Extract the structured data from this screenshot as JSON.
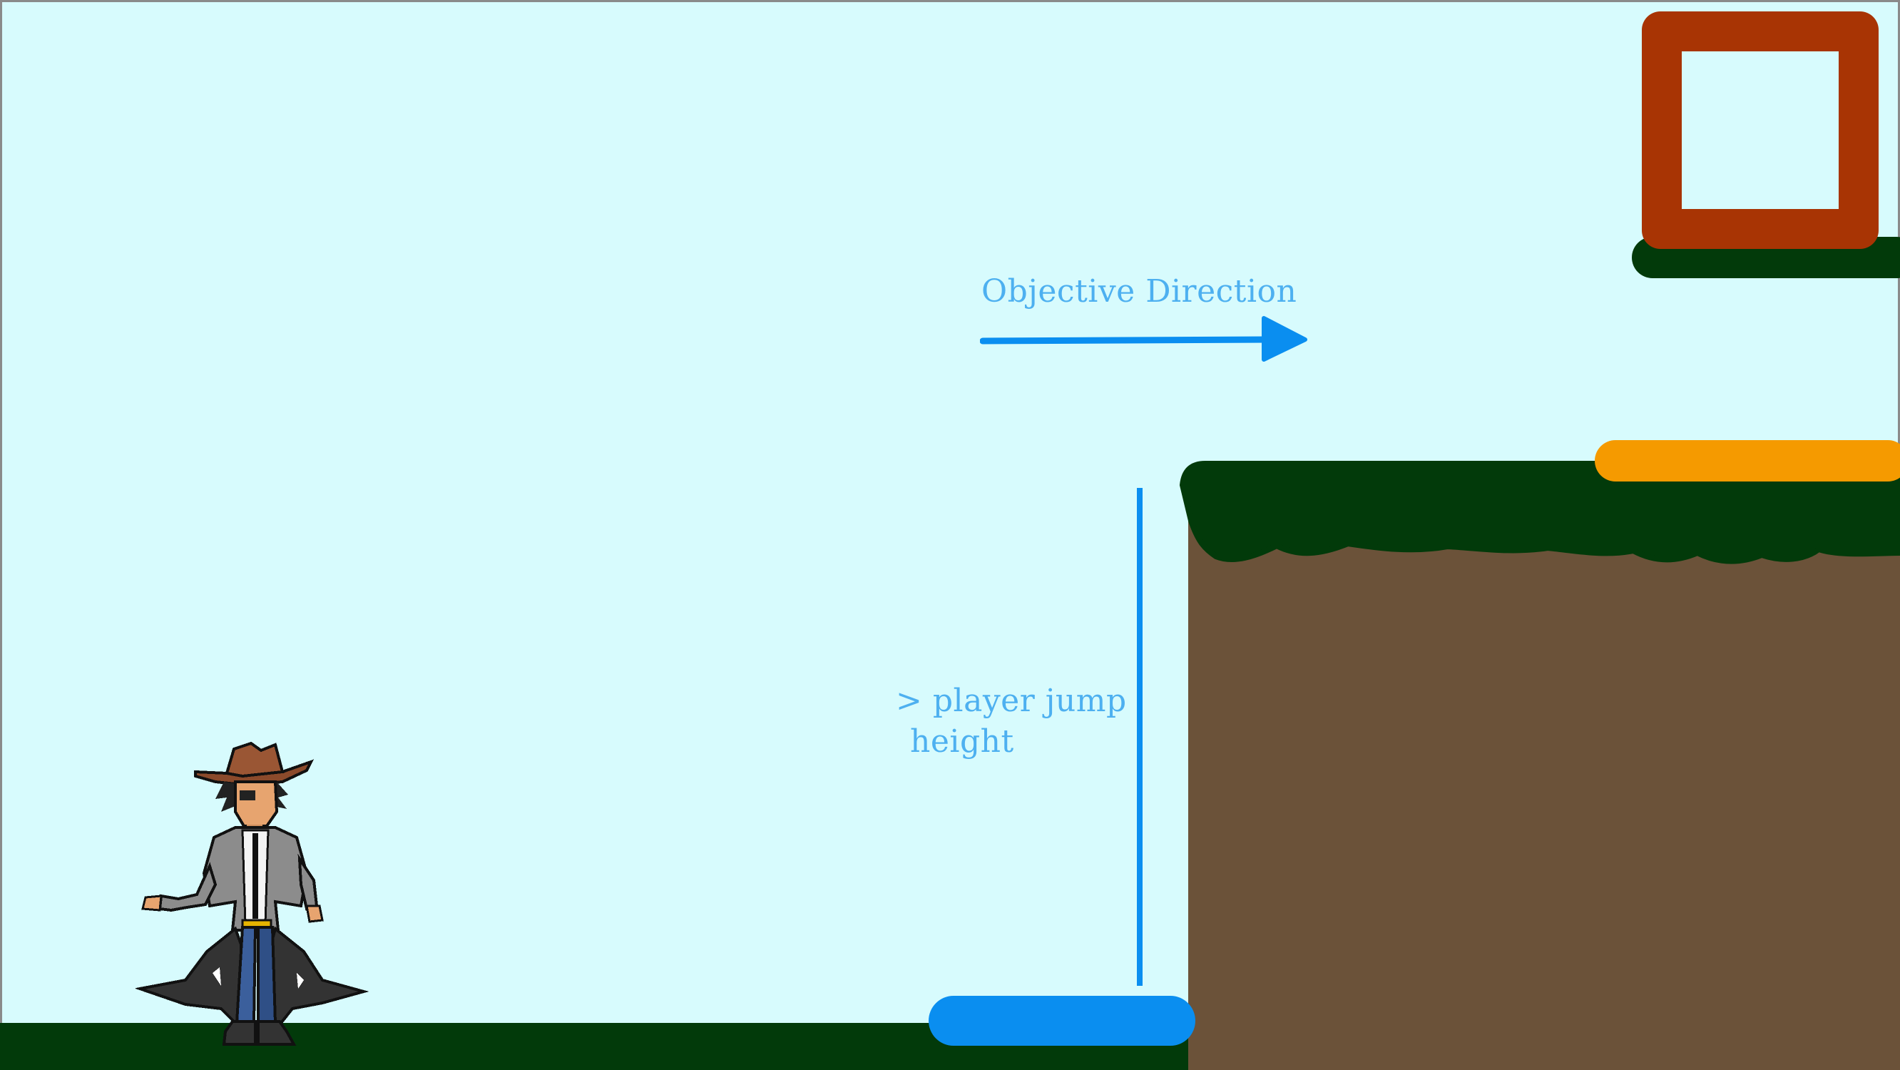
{
  "scene": {
    "objective_label": "Objective Direction",
    "jump_label_line1": "> player jump",
    "jump_label_line2": "height"
  },
  "colors": {
    "sky": "#d7fbfd",
    "ground_green": "#023a0a",
    "dirt": "#6b5239",
    "goal_frame": "#a83404",
    "annotation_blue": "#0a8ef0",
    "platform_blue": "#0a8ef0",
    "platform_orange": "#f59a00"
  },
  "icons": [
    "player-character-sprite",
    "objective-arrow-icon",
    "goal-door-icon"
  ]
}
